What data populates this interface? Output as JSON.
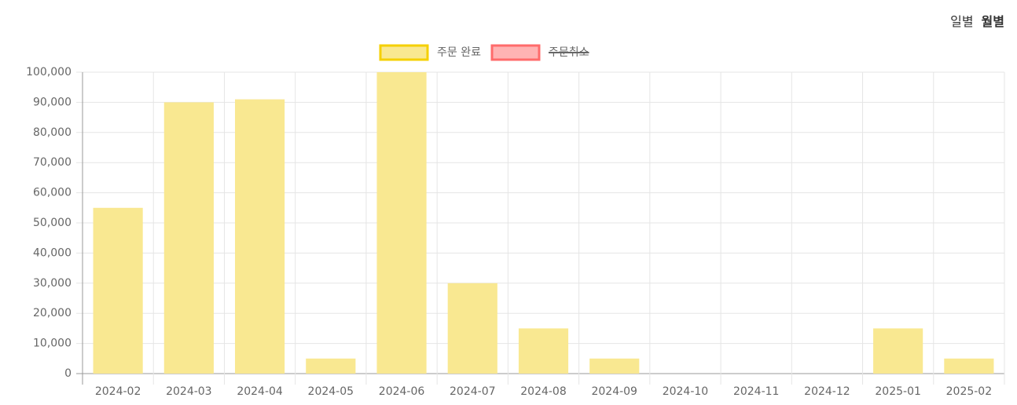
{
  "toolbar": {
    "buttons": [
      "일별",
      "월별"
    ]
  },
  "chart_data": {
    "type": "bar",
    "categories": [
      "2024-02",
      "2024-03",
      "2024-04",
      "2024-05",
      "2024-06",
      "2024-07",
      "2024-08",
      "2024-09",
      "2024-10",
      "2024-11",
      "2024-12",
      "2025-01",
      "2025-02"
    ],
    "series": [
      {
        "name": "주문 완료",
        "color": "#f5d000",
        "fill": "#f9e891",
        "hidden": false,
        "values": [
          55000,
          90000,
          91000,
          5000,
          100000,
          30000,
          15000,
          5000,
          0,
          0,
          0,
          15000,
          5000
        ]
      },
      {
        "name": "주문취소",
        "color": "#ff6b6b",
        "fill": "#ffb3b3",
        "hidden": true,
        "values": [
          null,
          null,
          null,
          null,
          null,
          null,
          null,
          null,
          null,
          null,
          null,
          null,
          null
        ]
      }
    ],
    "ylim": [
      0,
      100000
    ],
    "yticks": [
      0,
      {
        "value": 10000,
        "label": "10,000"
      },
      {
        "value": 20000,
        "label": "20,000"
      },
      {
        "value": 30000,
        "label": "30,000"
      },
      {
        "value": 40000,
        "label": "40,000"
      },
      {
        "value": 50000,
        "label": "50,000"
      },
      {
        "value": 60000,
        "label": "60,000"
      },
      {
        "value": 70000,
        "label": "70,000"
      },
      {
        "value": 80000,
        "label": "80,000"
      },
      {
        "value": 90000,
        "label": "90,000"
      },
      {
        "value": 100000,
        "label": "100,000"
      }
    ],
    "grid": true,
    "legend": "top"
  }
}
